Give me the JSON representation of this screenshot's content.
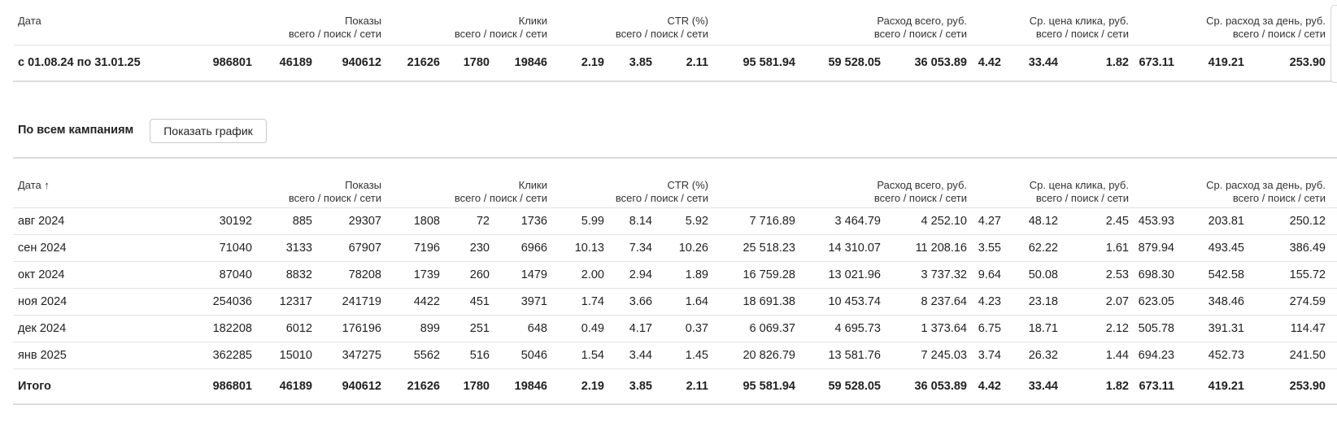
{
  "summary": {
    "date_header": "Дата",
    "headers": [
      {
        "title": "Показы",
        "sub": "всего / поиск / сети"
      },
      {
        "title": "Клики",
        "sub": "всего / поиск / сети"
      },
      {
        "title": "CTR (%)",
        "sub": "всего / поиск / сети"
      },
      {
        "title": "Расход всего, руб.",
        "sub": "всего / поиск / сети"
      },
      {
        "title": "Ср. цена клика, руб.",
        "sub": "всего / поиск / сети"
      },
      {
        "title": "Ср. расход за день, руб.",
        "sub": "всего / поиск / сети"
      }
    ],
    "row": {
      "label": "с 01.08.24 по 31.01.25",
      "values": [
        "986801",
        "46189",
        "940612",
        "21626",
        "1780",
        "19846",
        "2.19",
        "3.85",
        "2.11",
        "95 581.94",
        "59 528.05",
        "36 053.89",
        "4.42",
        "33.44",
        "1.82",
        "673.11",
        "419.21",
        "253.90"
      ]
    }
  },
  "campaigns": {
    "title": "По всем кампаниям",
    "show_chart_label": "Показать график"
  },
  "detail": {
    "date_header": "Дата ↑",
    "headers": [
      {
        "title": "Показы",
        "sub": "всего / поиск / сети"
      },
      {
        "title": "Клики",
        "sub": "всего / поиск / сети"
      },
      {
        "title": "CTR (%)",
        "sub": "всего / поиск / сети"
      },
      {
        "title": "Расход всего, руб.",
        "sub": "всего / поиск / сети"
      },
      {
        "title": "Ср. цена клика, руб.",
        "sub": "всего / поиск / сети"
      },
      {
        "title": "Ср. расход за день, руб.",
        "sub": "всего / поиск / сети"
      }
    ],
    "rows": [
      {
        "label": "авг 2024",
        "values": [
          "30192",
          "885",
          "29307",
          "1808",
          "72",
          "1736",
          "5.99",
          "8.14",
          "5.92",
          "7 716.89",
          "3 464.79",
          "4 252.10",
          "4.27",
          "48.12",
          "2.45",
          "453.93",
          "203.81",
          "250.12"
        ]
      },
      {
        "label": "сен 2024",
        "values": [
          "71040",
          "3133",
          "67907",
          "7196",
          "230",
          "6966",
          "10.13",
          "7.34",
          "10.26",
          "25 518.23",
          "14 310.07",
          "11 208.16",
          "3.55",
          "62.22",
          "1.61",
          "879.94",
          "493.45",
          "386.49"
        ]
      },
      {
        "label": "окт 2024",
        "values": [
          "87040",
          "8832",
          "78208",
          "1739",
          "260",
          "1479",
          "2.00",
          "2.94",
          "1.89",
          "16 759.28",
          "13 021.96",
          "3 737.32",
          "9.64",
          "50.08",
          "2.53",
          "698.30",
          "542.58",
          "155.72"
        ]
      },
      {
        "label": "ноя 2024",
        "values": [
          "254036",
          "12317",
          "241719",
          "4422",
          "451",
          "3971",
          "1.74",
          "3.66",
          "1.64",
          "18 691.38",
          "10 453.74",
          "8 237.64",
          "4.23",
          "23.18",
          "2.07",
          "623.05",
          "348.46",
          "274.59"
        ]
      },
      {
        "label": "дек 2024",
        "values": [
          "182208",
          "6012",
          "176196",
          "899",
          "251",
          "648",
          "0.49",
          "4.17",
          "0.37",
          "6 069.37",
          "4 695.73",
          "1 373.64",
          "6.75",
          "18.71",
          "2.12",
          "505.78",
          "391.31",
          "114.47"
        ]
      },
      {
        "label": "янв 2025",
        "values": [
          "362285",
          "15010",
          "347275",
          "5562",
          "516",
          "5046",
          "1.54",
          "3.44",
          "1.45",
          "20 826.79",
          "13 581.76",
          "7 245.03",
          "3.74",
          "26.32",
          "1.44",
          "694.23",
          "452.73",
          "241.50"
        ]
      }
    ],
    "total": {
      "label": "Итого",
      "values": [
        "986801",
        "46189",
        "940612",
        "21626",
        "1780",
        "19846",
        "2.19",
        "3.85",
        "2.11",
        "95 581.94",
        "59 528.05",
        "36 053.89",
        "4.42",
        "33.44",
        "1.82",
        "673.11",
        "419.21",
        "253.90"
      ]
    }
  }
}
